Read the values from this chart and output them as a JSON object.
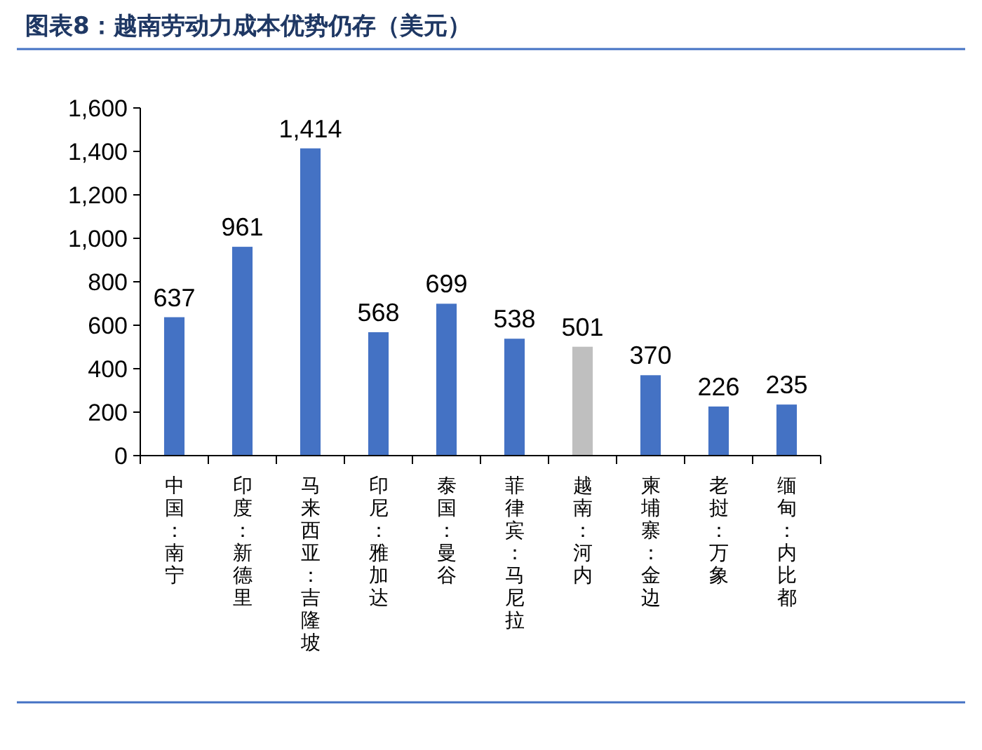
{
  "chart_data": {
    "type": "bar",
    "title": "图表8：越南劳动力成本优势仍存（美元）",
    "categories": [
      "中国：南宁",
      "印度：新德里",
      "马来西亚：吉隆坡",
      "印尼：雅加达",
      "泰国：曼谷",
      "菲律宾：马尼拉",
      "越南：河内",
      "柬埔寨：金边",
      "老挝：万象",
      "缅甸：内比都"
    ],
    "values": [
      637,
      961,
      1414,
      568,
      699,
      538,
      501,
      370,
      226,
      235
    ],
    "colors": [
      "#4472c4",
      "#4472c4",
      "#4472c4",
      "#4472c4",
      "#4472c4",
      "#4472c4",
      "#bfbfbf",
      "#4472c4",
      "#4472c4",
      "#4472c4"
    ],
    "ylim": [
      0,
      1600
    ],
    "yticks": [
      0,
      {
        "value": 200,
        "label": "200"
      },
      {
        "value": 400,
        "label": "400"
      },
      {
        "value": 600,
        "label": "600"
      },
      {
        "value": 800,
        "label": "800"
      },
      {
        "value": 1000,
        "label": "1,000"
      },
      {
        "value": 1200,
        "label": "1,200"
      },
      {
        "value": 1400,
        "label": "1,400"
      },
      {
        "value": 1600,
        "label": "1,600"
      }
    ],
    "value_labels": [
      "637",
      "961",
      "1,414",
      "568",
      "699",
      "538",
      "501",
      "370",
      "226",
      "235"
    ],
    "grid": false
  }
}
